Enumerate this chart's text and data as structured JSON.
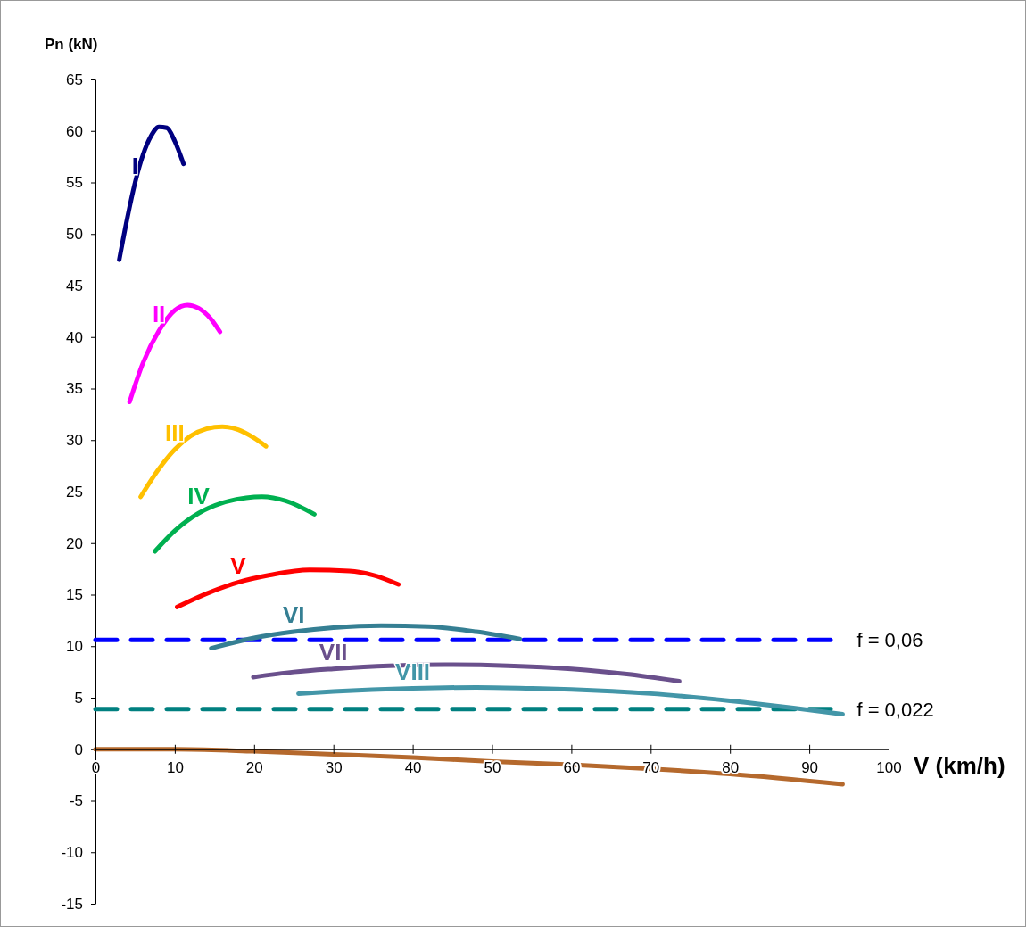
{
  "chart_data": {
    "type": "line",
    "xlabel": "V (km/h)",
    "ylabel": "Pn (kN)",
    "xlim": [
      0,
      100
    ],
    "ylim": [
      -15,
      65
    ],
    "xticks": [
      0,
      10,
      20,
      30,
      40,
      50,
      60,
      70,
      80,
      90,
      100
    ],
    "yticks": [
      -15,
      -10,
      -5,
      0,
      5,
      10,
      15,
      20,
      25,
      30,
      35,
      40,
      45,
      50,
      55,
      60,
      65
    ],
    "grid": false,
    "line_style": "solid",
    "annotations": [
      "f = 0,06",
      "f = 0,022"
    ],
    "series": [
      {
        "name": "I",
        "color": "#000080",
        "x": [
          3,
          4,
          5,
          6,
          7,
          8,
          9,
          10,
          11.1
        ],
        "values": [
          47.5,
          51.5,
          55,
          57.7,
          59.5,
          60.4,
          60.3,
          59,
          56.8
        ]
      },
      {
        "name": "II",
        "color": "#ff00ff",
        "x": [
          4.3,
          6,
          8,
          10,
          11.6,
          13,
          14.5,
          15.7
        ],
        "values": [
          33.7,
          37.5,
          40.6,
          42.6,
          43.1,
          42.8,
          41.8,
          40.5
        ]
      },
      {
        "name": "III",
        "color": "#ffc000",
        "x": [
          5.7,
          8,
          10,
          12,
          14,
          16,
          18,
          20,
          21.5
        ],
        "values": [
          24.5,
          27.2,
          29.1,
          30.4,
          31.1,
          31.3,
          31,
          30.2,
          29.4
        ]
      },
      {
        "name": "IV",
        "color": "#00b050",
        "x": [
          7.5,
          10,
          13,
          16,
          19,
          21,
          24,
          27.6
        ],
        "values": [
          19.2,
          21.2,
          22.9,
          23.9,
          24.4,
          24.5,
          24.1,
          22.8
        ]
      },
      {
        "name": "V",
        "color": "#ff0000",
        "x": [
          10.3,
          14,
          18,
          22,
          27,
          32,
          35,
          38.2
        ],
        "values": [
          13.8,
          15.1,
          16.2,
          16.9,
          17.4,
          17.3,
          16.9,
          16
        ]
      },
      {
        "name": "VI",
        "color": "#357f93",
        "x": [
          14.6,
          20,
          25,
          30,
          36,
          42,
          48,
          53.5
        ],
        "values": [
          9.8,
          10.8,
          11.4,
          11.8,
          12,
          11.9,
          11.4,
          10.7
        ]
      },
      {
        "name": "VII",
        "color": "#6a508c",
        "x": [
          19.9,
          25,
          30,
          37,
          44,
          52,
          60,
          67,
          73.6
        ],
        "values": [
          7,
          7.5,
          7.8,
          8.1,
          8.2,
          8.1,
          7.8,
          7.3,
          6.6
        ]
      },
      {
        "name": "VIII",
        "color": "#4396a8",
        "x": [
          25.6,
          30,
          40,
          48,
          55,
          60,
          70,
          80,
          88,
          94.2
        ],
        "values": [
          5.4,
          5.6,
          5.9,
          6,
          5.9,
          5.8,
          5.4,
          4.7,
          4,
          3.4
        ]
      },
      {
        "color": "#b5692d",
        "x": [
          0,
          10,
          20,
          30,
          40,
          50,
          60,
          70,
          80,
          94.2
        ],
        "values": [
          0,
          0,
          -0.2,
          -0.5,
          -0.8,
          -1.2,
          -1.5,
          -1.9,
          -2.4,
          -3.4
        ]
      }
    ],
    "ref_lines": [
      {
        "axis": "y",
        "value": 10.6,
        "color": "#0000ff",
        "line_style": "dashed"
      },
      {
        "axis": "y",
        "value": 3.9,
        "color": "#008080",
        "line_style": "dashed"
      }
    ]
  }
}
